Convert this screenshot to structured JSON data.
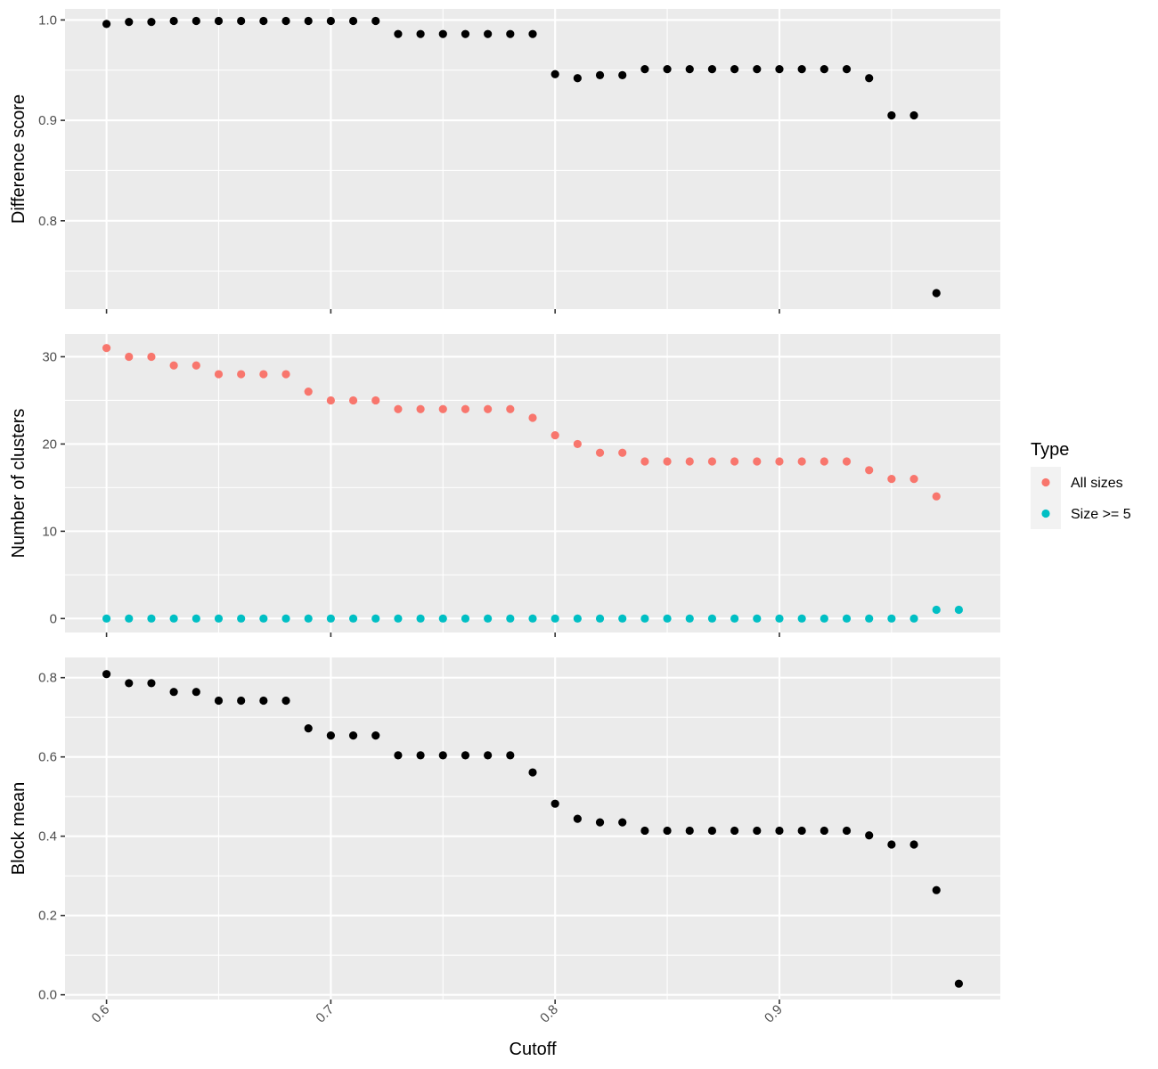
{
  "chart_data": {
    "type": "scatter",
    "xlabel": "Cutoff",
    "x_ticks": [
      "0.6",
      "0.7",
      "0.8",
      "0.9"
    ],
    "xlim": [
      0.5815,
      0.9985
    ],
    "legend": {
      "title": "Type",
      "placement": "right",
      "entries": [
        {
          "label": "All sizes",
          "color": "#F8766D"
        },
        {
          "label": "Size >= 5",
          "color": "#00BFC4"
        }
      ]
    },
    "panels": [
      {
        "ylabel": "Difference score",
        "ylim": [
          0.712,
          1.011
        ],
        "y_ticks": [
          "0.8",
          "0.9",
          "1.0"
        ],
        "y_tick_values": [
          0.8,
          0.9,
          1.0
        ],
        "series": [
          {
            "color": "#000000",
            "x": [
              0.6,
              0.61,
              0.62,
              0.63,
              0.64,
              0.65,
              0.66,
              0.67,
              0.68,
              0.69,
              0.7,
              0.71,
              0.72,
              0.73,
              0.74,
              0.75,
              0.76,
              0.77,
              0.78,
              0.79,
              0.8,
              0.81,
              0.82,
              0.83,
              0.84,
              0.85,
              0.86,
              0.87,
              0.88,
              0.89,
              0.9,
              0.91,
              0.92,
              0.93,
              0.94,
              0.95,
              0.96,
              0.97
            ],
            "y": [
              0.996,
              0.998,
              0.998,
              0.999,
              0.999,
              0.999,
              0.999,
              0.999,
              0.999,
              0.999,
              0.999,
              0.999,
              0.999,
              0.986,
              0.986,
              0.986,
              0.986,
              0.986,
              0.986,
              0.986,
              0.946,
              0.942,
              0.945,
              0.945,
              0.951,
              0.951,
              0.951,
              0.951,
              0.951,
              0.951,
              0.951,
              0.951,
              0.951,
              0.951,
              0.942,
              0.905,
              0.905,
              0.728
            ]
          }
        ]
      },
      {
        "ylabel": "Number of clusters",
        "ylim": [
          -1.6,
          32.6
        ],
        "y_ticks": [
          "0",
          "10",
          "20",
          "30"
        ],
        "y_tick_values": [
          0,
          10,
          20,
          30
        ],
        "series": [
          {
            "name": "All sizes",
            "color": "#F8766D",
            "x": [
              0.6,
              0.61,
              0.62,
              0.63,
              0.64,
              0.65,
              0.66,
              0.67,
              0.68,
              0.69,
              0.7,
              0.71,
              0.72,
              0.73,
              0.74,
              0.75,
              0.76,
              0.77,
              0.78,
              0.79,
              0.8,
              0.81,
              0.82,
              0.83,
              0.84,
              0.85,
              0.86,
              0.87,
              0.88,
              0.89,
              0.9,
              0.91,
              0.92,
              0.93,
              0.94,
              0.95,
              0.96,
              0.97
            ],
            "y": [
              31,
              30,
              30,
              29,
              29,
              28,
              28,
              28,
              28,
              26,
              25,
              25,
              25,
              24,
              24,
              24,
              24,
              24,
              24,
              23,
              21,
              20,
              19,
              19,
              18,
              18,
              18,
              18,
              18,
              18,
              18,
              18,
              18,
              18,
              17,
              16,
              16,
              14
            ]
          },
          {
            "name": "Size >= 5",
            "color": "#00BFC4",
            "x": [
              0.6,
              0.61,
              0.62,
              0.63,
              0.64,
              0.65,
              0.66,
              0.67,
              0.68,
              0.69,
              0.7,
              0.71,
              0.72,
              0.73,
              0.74,
              0.75,
              0.76,
              0.77,
              0.78,
              0.79,
              0.8,
              0.81,
              0.82,
              0.83,
              0.84,
              0.85,
              0.86,
              0.87,
              0.88,
              0.89,
              0.9,
              0.91,
              0.92,
              0.93,
              0.94,
              0.95,
              0.96,
              0.97,
              0.98
            ],
            "y": [
              0,
              0,
              0,
              0,
              0,
              0,
              0,
              0,
              0,
              0,
              0,
              0,
              0,
              0,
              0,
              0,
              0,
              0,
              0,
              0,
              0,
              0,
              0,
              0,
              0,
              0,
              0,
              0,
              0,
              0,
              0,
              0,
              0,
              0,
              0,
              0,
              0,
              1,
              1
            ]
          }
        ]
      },
      {
        "ylabel": "Block mean",
        "ylim": [
          -0.012,
          0.851
        ],
        "y_ticks": [
          "0.0",
          "0.2",
          "0.4",
          "0.6",
          "0.8"
        ],
        "y_tick_values": [
          0.0,
          0.2,
          0.4,
          0.6,
          0.8
        ],
        "series": [
          {
            "color": "#000000",
            "x": [
              0.6,
              0.61,
              0.62,
              0.63,
              0.64,
              0.65,
              0.66,
              0.67,
              0.68,
              0.69,
              0.7,
              0.71,
              0.72,
              0.73,
              0.74,
              0.75,
              0.76,
              0.77,
              0.78,
              0.79,
              0.8,
              0.81,
              0.82,
              0.83,
              0.84,
              0.85,
              0.86,
              0.87,
              0.88,
              0.89,
              0.9,
              0.91,
              0.92,
              0.93,
              0.94,
              0.95,
              0.96,
              0.97,
              0.98
            ],
            "y": [
              0.809,
              0.786,
              0.786,
              0.764,
              0.764,
              0.742,
              0.742,
              0.742,
              0.742,
              0.672,
              0.654,
              0.654,
              0.654,
              0.604,
              0.604,
              0.604,
              0.604,
              0.604,
              0.604,
              0.561,
              0.482,
              0.444,
              0.435,
              0.435,
              0.414,
              0.414,
              0.414,
              0.414,
              0.414,
              0.414,
              0.414,
              0.414,
              0.414,
              0.414,
              0.402,
              0.379,
              0.379,
              0.264,
              0.028
            ]
          }
        ]
      }
    ]
  }
}
